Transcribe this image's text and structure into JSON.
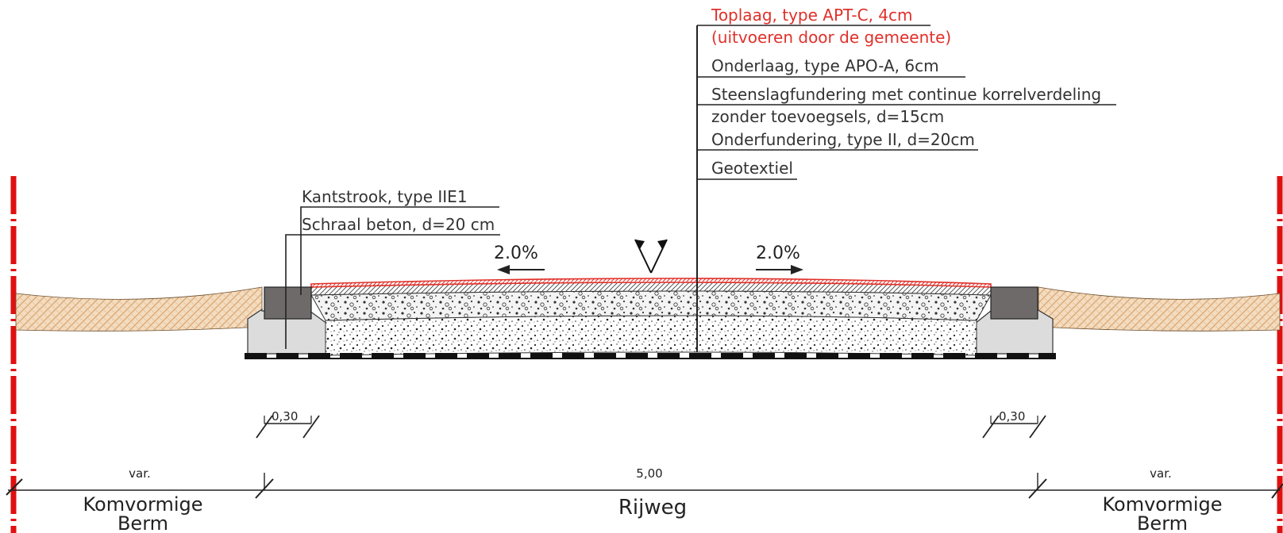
{
  "layers": [
    {
      "id": "toplaag_1",
      "text": "Toplaag, type APT-C, 4cm",
      "color": "#e0302a"
    },
    {
      "id": "toplaag_2",
      "text": "(uitvoeren door de gemeente)",
      "color": "#e0302a"
    },
    {
      "id": "onderlaag",
      "text": "Onderlaag, type APO-A, 6cm",
      "color": "#333333"
    },
    {
      "id": "steenslag_1",
      "text": "Steenslagfundering met continue korrelverdeling",
      "color": "#333333"
    },
    {
      "id": "steenslag_2",
      "text": "zonder toevoegsels, d=15cm",
      "color": "#333333"
    },
    {
      "id": "onderfundering",
      "text": "Onderfundering, type II, d=20cm",
      "color": "#333333"
    },
    {
      "id": "geotextiel",
      "text": "Geotextiel",
      "color": "#333333"
    }
  ],
  "curb_labels": {
    "kantstrook": "Kantstrook, type IIE1",
    "schraal_beton": "Schraal beton, d=20 cm"
  },
  "slopes": {
    "left": "2.0%",
    "right": "2.0%"
  },
  "dimensions": {
    "curb_left": "0,30",
    "curb_right": "0,30",
    "berm_left": "var.",
    "rijweg": "5,00",
    "berm_right": "var."
  },
  "zones": {
    "left_line1": "Komvormige",
    "left_line2": "Berm",
    "center": "Rijweg",
    "right_line1": "Komvormige",
    "right_line2": "Berm"
  },
  "colors": {
    "toplaag": "#e0302a",
    "soil": "#e3b98c",
    "curb": "#6e6a6a",
    "concrete": "#dcdcdc",
    "boundary": "#e01010"
  }
}
